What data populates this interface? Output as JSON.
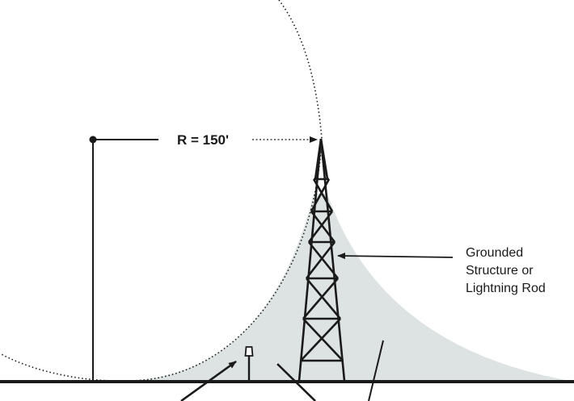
{
  "diagram": {
    "radius_label": "R = 150'",
    "callout_lines": [
      "Grounded",
      "Structure or",
      "Lightning Rod"
    ]
  },
  "colors": {
    "ink": "#1a1a1a",
    "protected_zone": "#dde3e3",
    "background": "#ffffff"
  },
  "icons": [
    "lightning-rod-tower",
    "small-pole",
    "dotted-sphere-arc"
  ]
}
